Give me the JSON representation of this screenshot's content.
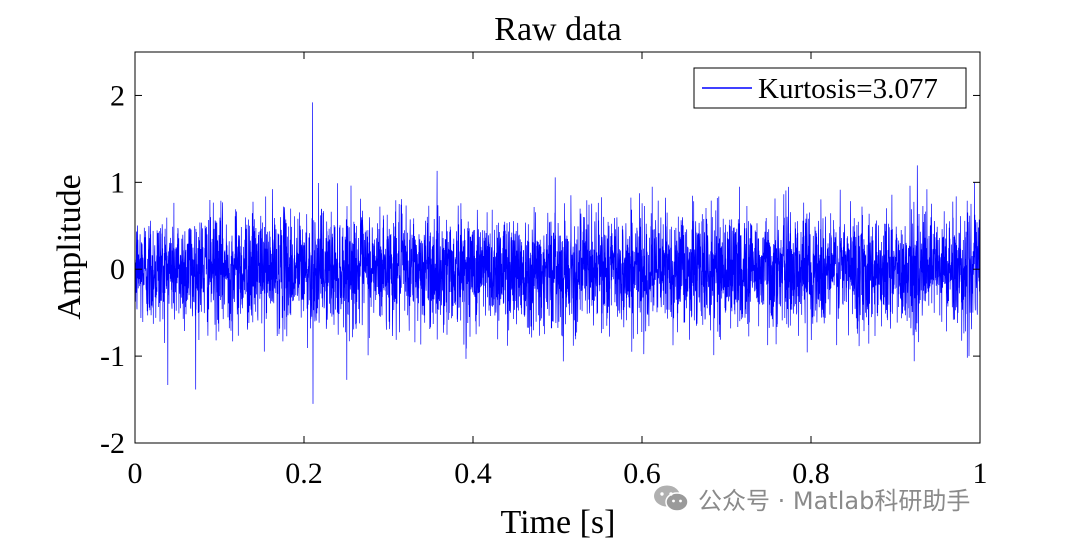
{
  "chart_data": {
    "type": "line",
    "title": "Raw data",
    "xlabel": "Time [s]",
    "ylabel": "Amplitude",
    "xlim": [
      0,
      1
    ],
    "ylim": [
      -2,
      2.5
    ],
    "xticks": [
      0,
      0.2,
      0.4,
      0.6,
      0.8,
      1
    ],
    "xtick_labels": [
      "0",
      "0.2",
      "0.4",
      "0.6",
      "0.8",
      "1"
    ],
    "yticks": [
      -2,
      -1,
      0,
      1,
      2
    ],
    "ytick_labels": [
      "-2",
      "-1",
      "0",
      "1",
      "2"
    ],
    "grid": false,
    "legend_position": "top-right",
    "series": [
      {
        "name": "Kurtosis=3.077",
        "color": "#0000ff",
        "signal": "random noise, approximately Gaussian",
        "mean": 0,
        "std": 0.33,
        "max": 1.92,
        "min": -1.6,
        "peak_at_x": 0.21
      }
    ]
  },
  "watermark": {
    "text": "公众号 · Matlab科研助手",
    "icon": "wechat-icon"
  }
}
